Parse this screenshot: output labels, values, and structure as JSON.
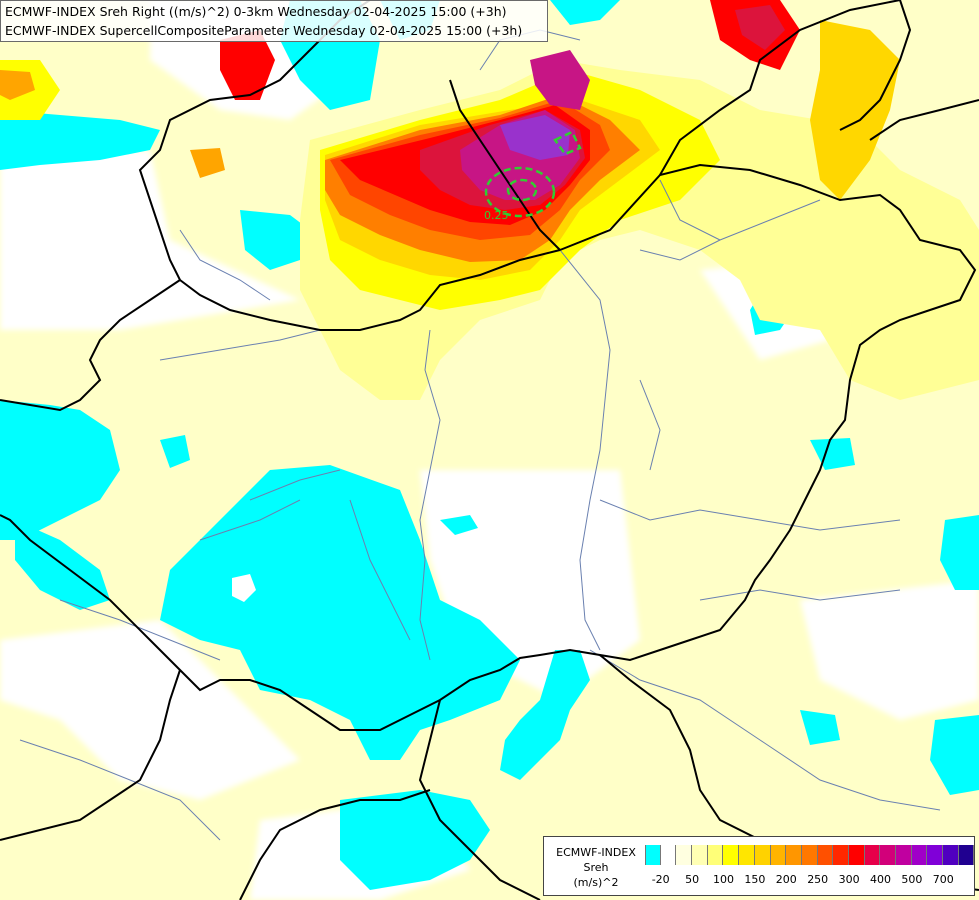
{
  "title_lines": [
    "ECMWF-INDEX Sreh Right ((m/s)^2) 0-3km Wednesday 02-04-2025 15:00 (+3h)",
    "ECMWF-INDEX SupercellCompositeParameter Wednesday 02-04-2025 15:00 (+3h)"
  ],
  "contour_label": "0.25",
  "colors": {
    "background": "#ffffff",
    "cyan": "#00ffff",
    "pale_yellow": "#ffffc8",
    "light_yellow": "#ffff96",
    "yellow": "#ffff00",
    "gold": "#ffd700",
    "orange": "#ffa500",
    "dark_orange": "#ff7f00",
    "red_orange": "#ff4500",
    "red": "#ff0000",
    "crimson": "#dc143c",
    "magenta": "#c71585",
    "purple": "#9932cc",
    "scp_contour": "#32cd32",
    "border": "#000000",
    "river": "#6a80b0"
  },
  "legend": {
    "name_lines": [
      "ECMWF-INDEX",
      "Sreh",
      "(m/s)^2"
    ],
    "colors": [
      "#00ffff",
      "#ffffff",
      "#ffffe0",
      "#ffffb4",
      "#ffff78",
      "#ffff00",
      "#ffe600",
      "#ffd200",
      "#ffb400",
      "#ff9600",
      "#ff7800",
      "#ff5000",
      "#ff2800",
      "#ff0000",
      "#e6004a",
      "#d2007a",
      "#c000a0",
      "#a000c8",
      "#8000d8",
      "#5000c0",
      "#200090"
    ],
    "tick_labels": [
      "-20",
      "50",
      "100",
      "150",
      "200",
      "250",
      "300",
      "400",
      "500",
      "700"
    ]
  }
}
